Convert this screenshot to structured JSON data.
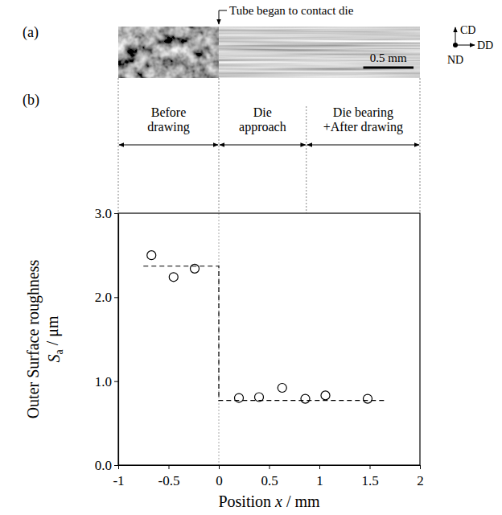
{
  "chart_data": {
    "type": "scatter",
    "xlabel": "Position x / mm",
    "ylabel": [
      "Outer Surface roughness",
      "Sa / μm"
    ],
    "xlim": [
      -1,
      2
    ],
    "ylim": [
      0,
      3
    ],
    "xticks": [
      -1,
      -0.5,
      0,
      0.5,
      1,
      1.5,
      2
    ],
    "yticks": [
      {
        "value": 0,
        "label": "0.0"
      },
      {
        "value": 1,
        "label": "1.0"
      },
      {
        "value": 2,
        "label": "2.0"
      },
      {
        "value": 3,
        "label": "3.0"
      }
    ],
    "series": [
      {
        "type": "scatter",
        "marker": "circle",
        "x": [
          -0.67,
          -0.45,
          -0.24,
          0.2,
          0.4,
          0.63,
          0.86,
          1.06,
          1.48
        ],
        "values": [
          2.5,
          2.24,
          2.34,
          0.8,
          0.81,
          0.92,
          0.79,
          0.83,
          0.79
        ]
      },
      {
        "type": "line",
        "line_style": "dashed",
        "x": [
          -0.75,
          0,
          0,
          1.65
        ],
        "values": [
          2.37,
          2.37,
          0.77,
          0.77
        ]
      }
    ],
    "regions": [
      {
        "label": [
          "Before",
          "drawing"
        ],
        "from": -1,
        "to": 0
      },
      {
        "label": [
          "Die",
          "approach"
        ],
        "from": 0,
        "to": 0.87
      },
      {
        "label": [
          "Die bearing",
          "+After drawing"
        ],
        "from": 0.87,
        "to": 2
      }
    ],
    "panel_labels": [
      "(a)",
      "(b)"
    ],
    "image": {
      "from": -1,
      "to": 2,
      "contact_x": 0,
      "contact_label": "Tube began to contact die",
      "directions": {
        "up": "CD",
        "right": "DD",
        "out": "ND"
      },
      "scale_bar": {
        "length": 0.5,
        "label": "0.5 mm"
      }
    }
  }
}
